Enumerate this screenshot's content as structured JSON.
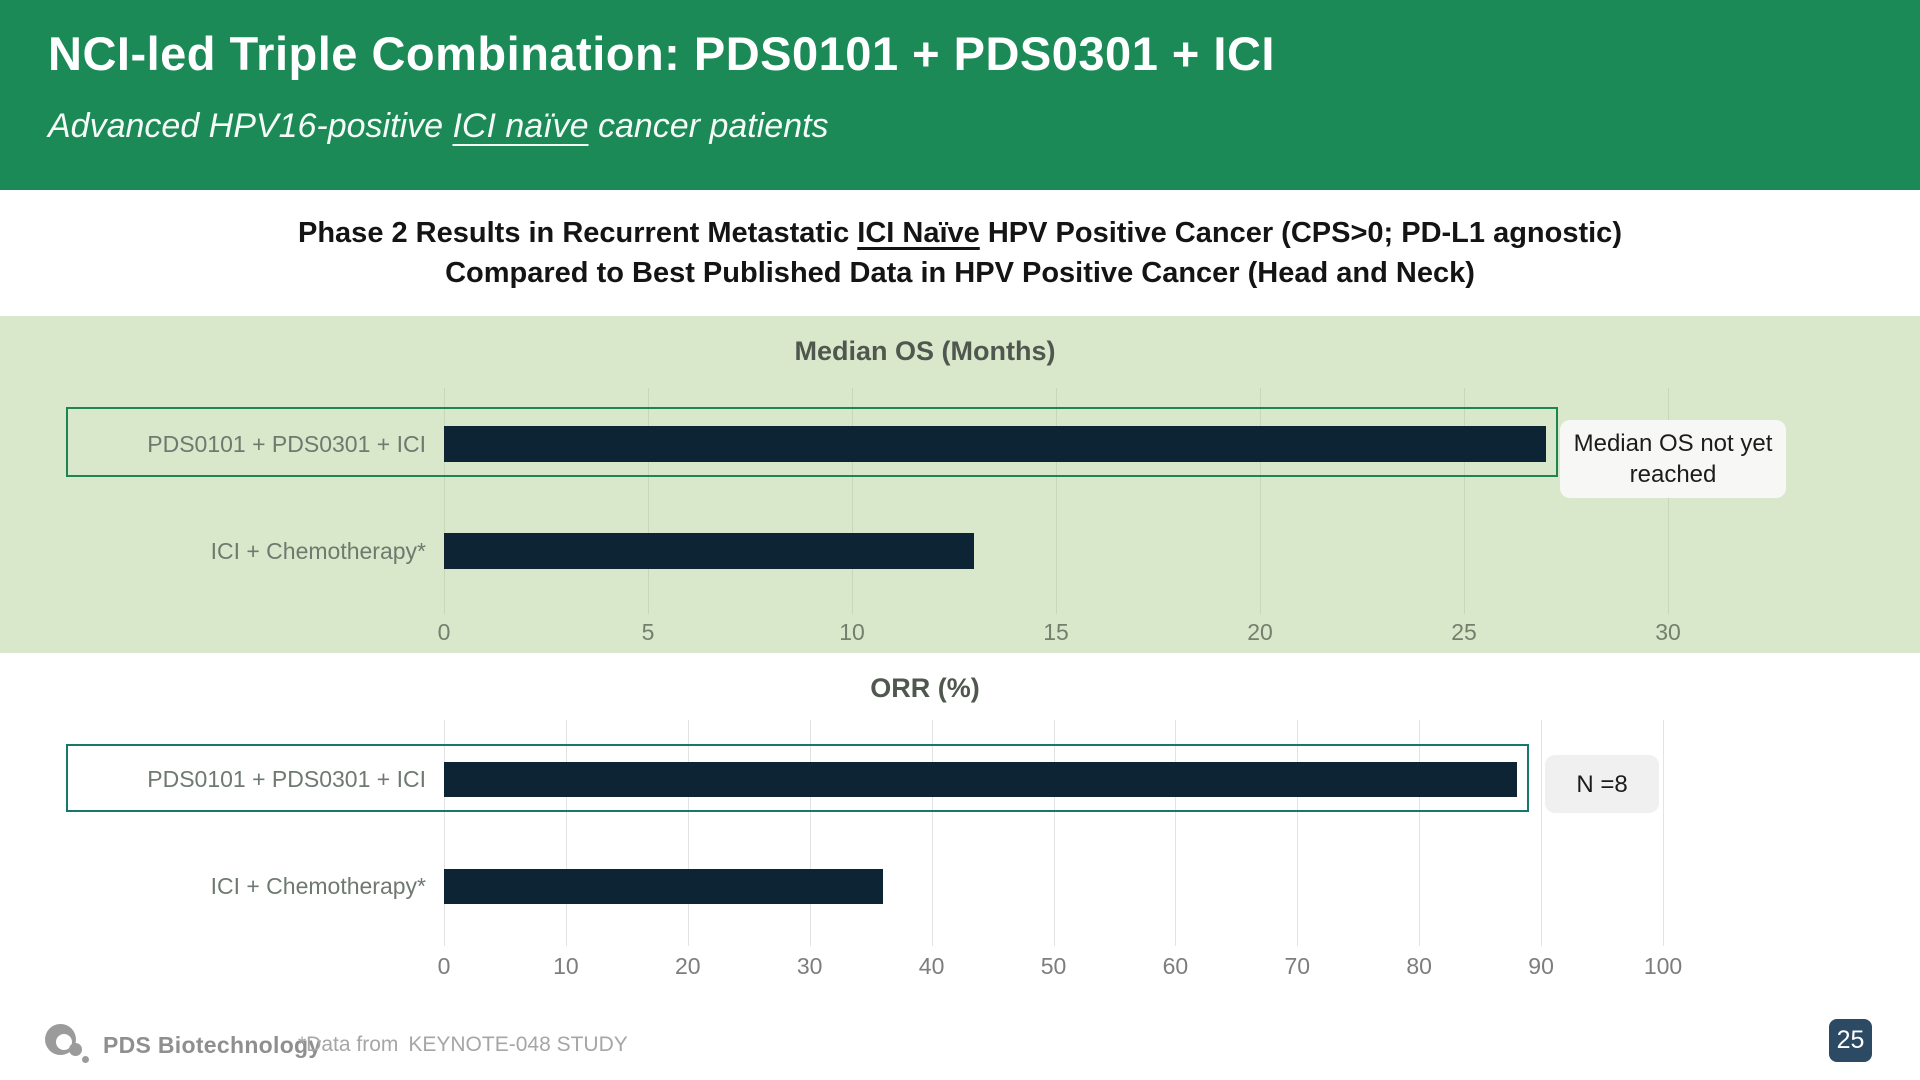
{
  "header": {
    "title": "NCI-led Triple Combination: PDS0101 + PDS0301 + ICI",
    "subtitle_pre": "Advanced HPV16-positive ",
    "subtitle_underlined": "ICI naïve",
    "subtitle_post": " cancer patients"
  },
  "heading": {
    "line1_pre": "Phase 2 Results in Recurrent Metastatic ",
    "line1_underlined": "ICI Naïve",
    "line1_post": " HPV Positive Cancer (CPS>0; PD-L1 agnostic)",
    "line2": "Compared to Best Published Data in HPV Positive Cancer (Head and Neck)"
  },
  "chart_data": [
    {
      "type": "bar",
      "orientation": "horizontal",
      "title": "Median OS (Months)",
      "categories": [
        "PDS0101 + PDS0301 + ICI",
        "ICI + Chemotherapy*"
      ],
      "values": [
        27,
        13
      ],
      "xlim": [
        0,
        30
      ],
      "xticks": [
        0,
        5,
        10,
        15,
        20,
        25,
        30
      ],
      "grid": true,
      "legend": "none",
      "annotation": "Median OS not yet reached",
      "annotation_row": 0,
      "highlighted_row": 0,
      "note": "top bar censored: median OS not yet reached"
    },
    {
      "type": "bar",
      "orientation": "horizontal",
      "title": "ORR (%)",
      "categories": [
        "PDS0101 + PDS0301 + ICI",
        "ICI + Chemotherapy*"
      ],
      "values": [
        88,
        36
      ],
      "xlim": [
        0,
        100
      ],
      "xticks": [
        0,
        10,
        20,
        30,
        40,
        50,
        60,
        70,
        80,
        90,
        100
      ],
      "grid": true,
      "legend": "none",
      "annotation": "N =8",
      "annotation_row": 0,
      "highlighted_row": 0
    }
  ],
  "footer": {
    "logo_text": "PDS Biotechnology",
    "note_prefix": "*Data from",
    "note_study": "KEYNOTE-048 STUDY",
    "page_number": "25"
  },
  "colors": {
    "header_green": "#1b8a57",
    "band_green": "#d9e7ca",
    "bar_navy": "#0d2435",
    "os_outline": "#1e8451",
    "orr_outline": "#16786b",
    "os_gridline": "#c6d8b8",
    "orr_gridline": "#e3e3e3",
    "os_tick_text": "#74806e",
    "orr_tick_text": "#7d7d7d",
    "annot_os_bg": "#f7f7f6",
    "annot_orr_bg": "#f0f0f0",
    "badge_bg": "#2c4a63"
  }
}
